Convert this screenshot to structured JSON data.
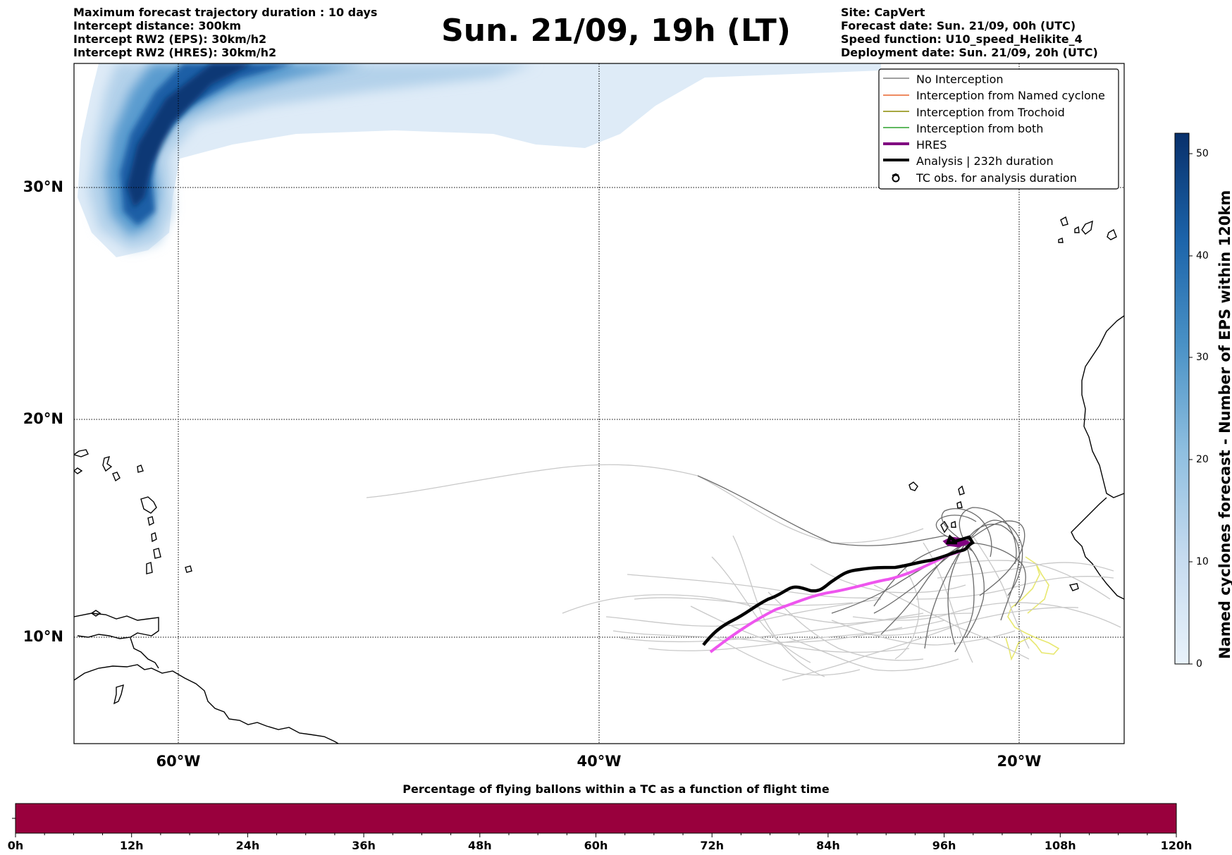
{
  "header_left": [
    "Maximum forecast trajectory duration : 10 days",
    "Intercept distance: 300km",
    "Intercept RW2 (EPS):  30km/h2",
    "Intercept RW2 (HRES): 30km/h2"
  ],
  "title": "Sun. 21/09, 19h (LT)",
  "header_right": [
    "Site: CapVert",
    "Forecast date: Sun. 21/09, 00h (UTC)",
    "Speed function: U10_speed_Helikite_4",
    "Deployment date: Sun. 21/09, 20h (UTC)"
  ],
  "map": {
    "lat_labels": [
      "30°N",
      "20°N",
      "10°N"
    ],
    "lon_labels": [
      "60°W",
      "40°W",
      "20°W"
    ]
  },
  "legend": [
    {
      "label": "No Interception",
      "color": "#808080",
      "style": "thin"
    },
    {
      "label": "Interception from Named cyclone",
      "color": "#e8632c",
      "style": "thin"
    },
    {
      "label": "Interception from Trochoid",
      "color": "#8a8a00",
      "style": "thin"
    },
    {
      "label": "Interception from both",
      "color": "#2ca02c",
      "style": "thin"
    },
    {
      "label": "HRES",
      "color": "#800080",
      "style": "thick"
    },
    {
      "label": "Analysis | 232h duration",
      "color": "#000000",
      "style": "thick"
    },
    {
      "label": "TC obs. for analysis duration",
      "color": "#000000",
      "style": "symbol",
      "icon": "cyclone-icon"
    }
  ],
  "colorbar": {
    "title": "Named cyclones forecast - Number of EPS within 120km",
    "ticks": [
      "0",
      "10",
      "20",
      "30",
      "40",
      "50"
    ],
    "min": 0,
    "max": 52,
    "color_low": "#deebf7",
    "color_high": "#08306b"
  },
  "timebar": {
    "title": "Percentage of flying ballons within a TC as a function of flight time",
    "labels": [
      "0h",
      "12h",
      "24h",
      "36h",
      "48h",
      "60h",
      "72h",
      "84h",
      "96h",
      "108h",
      "120h"
    ],
    "color": "#99003d"
  },
  "colors": {
    "hres": "#ee55ee",
    "analysis": "#000000",
    "eps_no_interception": "#c8c8c8",
    "eps_dark": "#606060",
    "trochoid": "#e8e870"
  }
}
